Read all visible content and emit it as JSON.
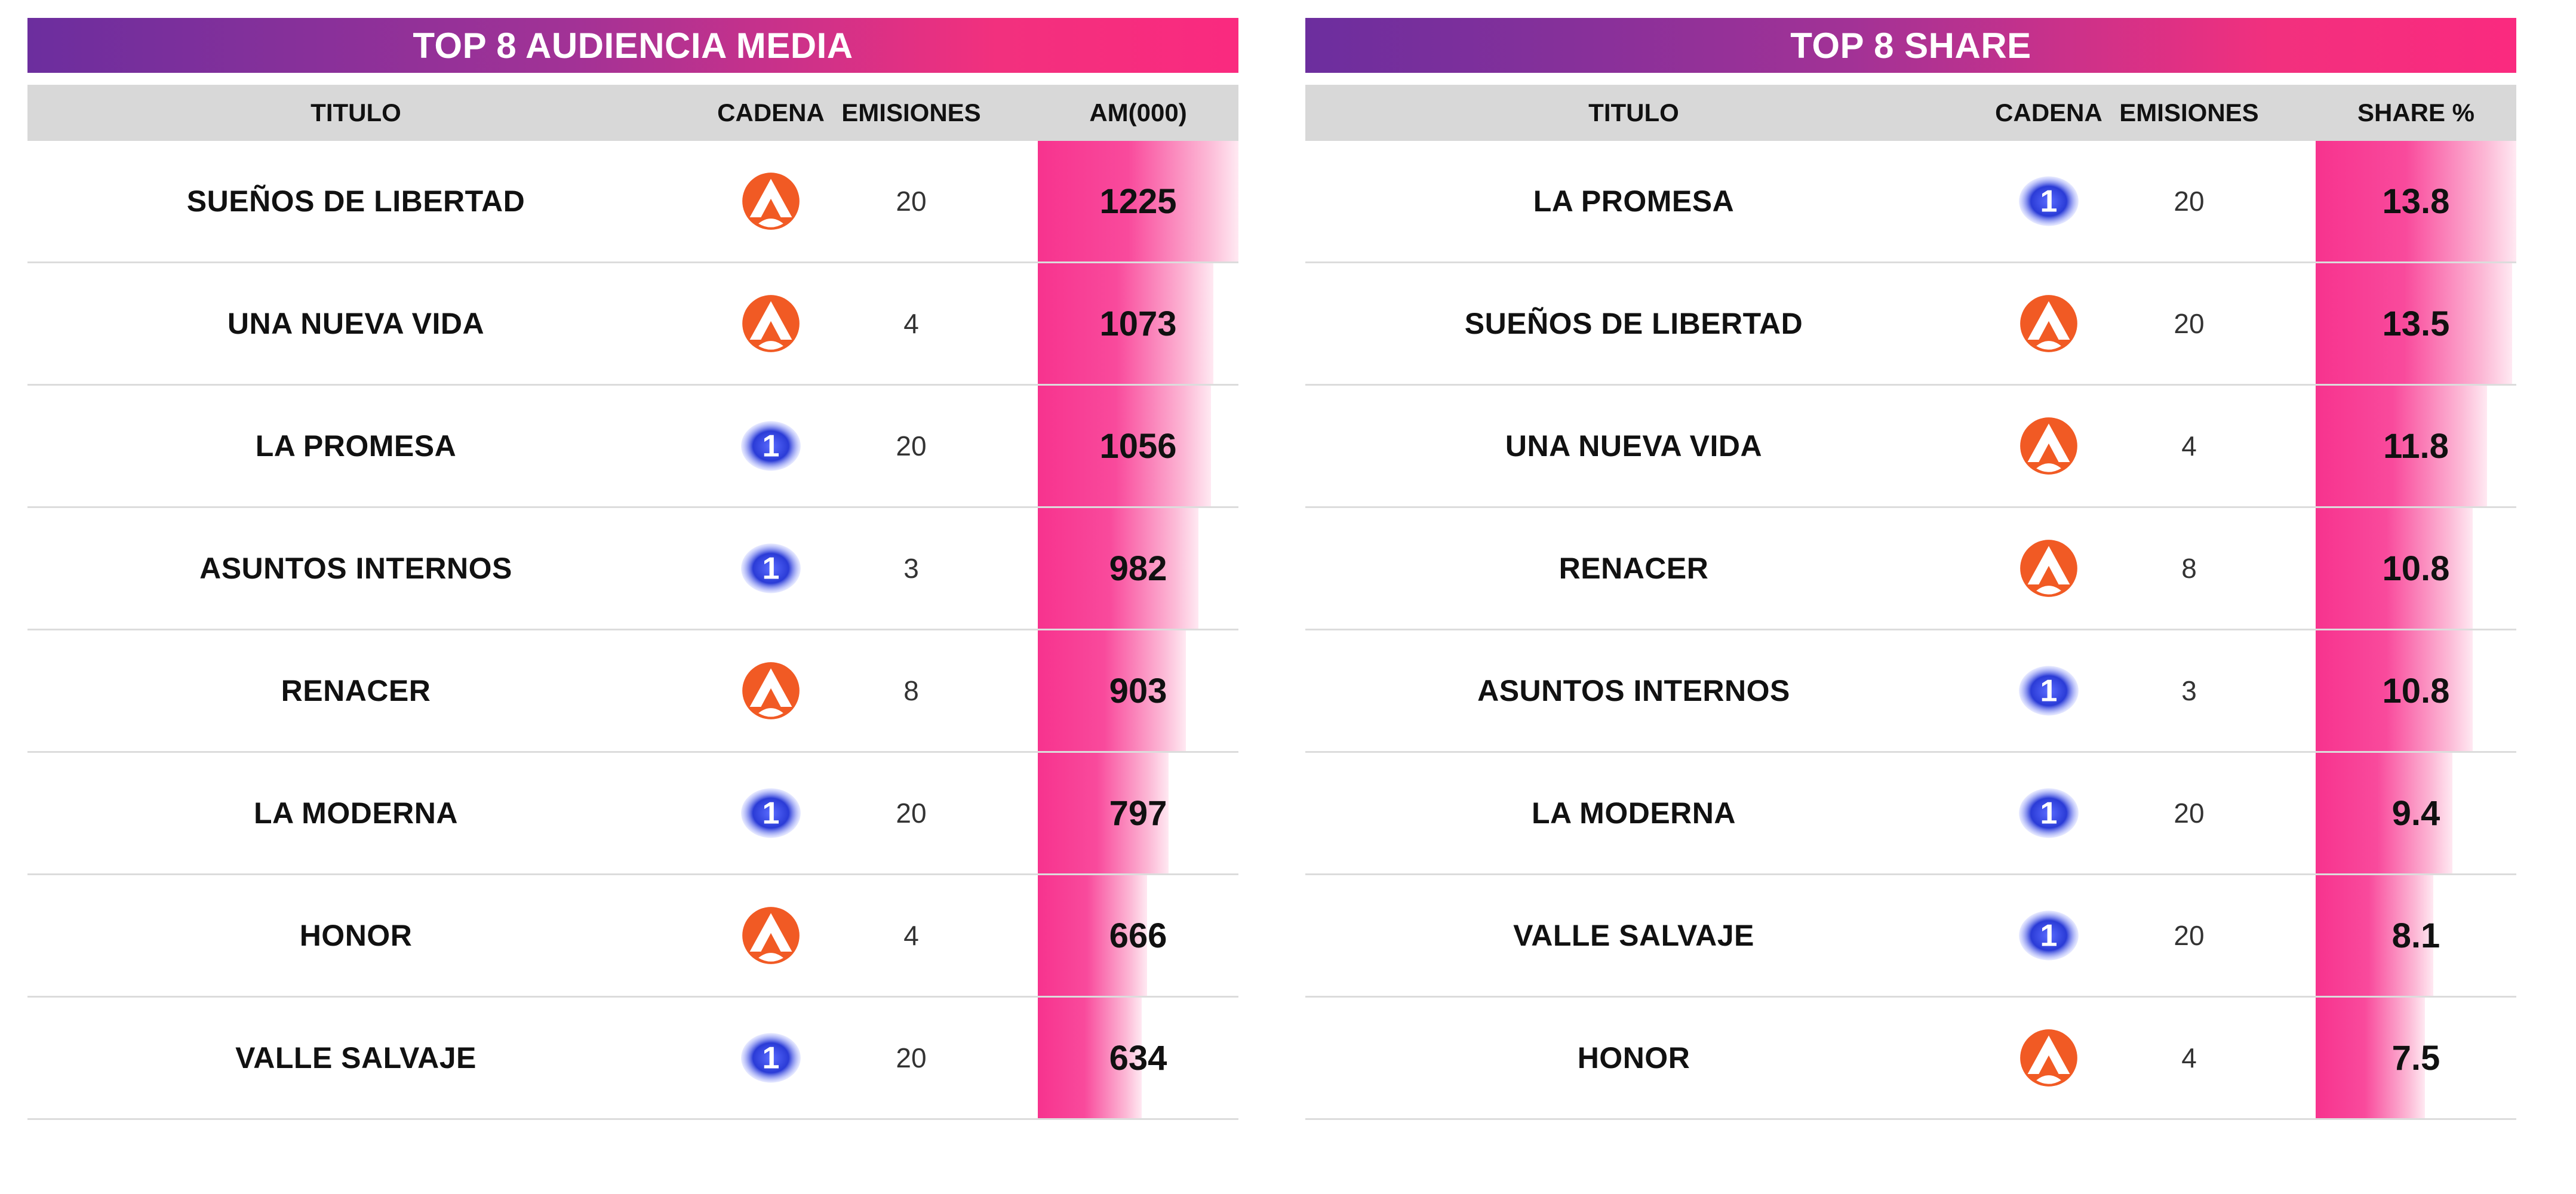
{
  "colors": {
    "banner_start": "#6c2e9e",
    "banner_end": "#fa2a7f",
    "bar": "#f7338e",
    "a3": "#f15a24",
    "tve_blue": "#2a3bd6"
  },
  "icons": {
    "antena3": "antena3-logo-icon",
    "la1": "la1-logo-icon"
  },
  "tables": [
    {
      "title": "TOP 8 AUDIENCIA MEDIA",
      "headers": {
        "titulo": "TITULO",
        "cadena": "CADENA",
        "emisiones": "EMISIONES",
        "value": "AM(000)"
      },
      "max": 1225,
      "rows": [
        {
          "titulo": "SUEÑOS DE LIBERTAD",
          "cadena": "antena3",
          "emisiones": "20",
          "value": "1225",
          "num": 1225
        },
        {
          "titulo": "UNA NUEVA VIDA",
          "cadena": "antena3",
          "emisiones": "4",
          "value": "1073",
          "num": 1073
        },
        {
          "titulo": "LA PROMESA",
          "cadena": "la1",
          "emisiones": "20",
          "value": "1056",
          "num": 1056
        },
        {
          "titulo": "ASUNTOS INTERNOS",
          "cadena": "la1",
          "emisiones": "3",
          "value": "982",
          "num": 982
        },
        {
          "titulo": "RENACER",
          "cadena": "antena3",
          "emisiones": "8",
          "value": "903",
          "num": 903
        },
        {
          "titulo": "LA MODERNA",
          "cadena": "la1",
          "emisiones": "20",
          "value": "797",
          "num": 797
        },
        {
          "titulo": "HONOR",
          "cadena": "antena3",
          "emisiones": "4",
          "value": "666",
          "num": 666
        },
        {
          "titulo": "VALLE SALVAJE",
          "cadena": "la1",
          "emisiones": "20",
          "value": "634",
          "num": 634
        }
      ]
    },
    {
      "title": "TOP 8 SHARE",
      "headers": {
        "titulo": "TITULO",
        "cadena": "CADENA",
        "emisiones": "EMISIONES",
        "value": "SHARE %"
      },
      "max": 13.8,
      "rows": [
        {
          "titulo": "LA PROMESA",
          "cadena": "la1",
          "emisiones": "20",
          "value": "13.8",
          "num": 13.8
        },
        {
          "titulo": "SUEÑOS DE LIBERTAD",
          "cadena": "antena3",
          "emisiones": "20",
          "value": "13.5",
          "num": 13.5
        },
        {
          "titulo": "UNA NUEVA VIDA",
          "cadena": "antena3",
          "emisiones": "4",
          "value": "11.8",
          "num": 11.8
        },
        {
          "titulo": "RENACER",
          "cadena": "antena3",
          "emisiones": "8",
          "value": "10.8",
          "num": 10.8
        },
        {
          "titulo": "ASUNTOS INTERNOS",
          "cadena": "la1",
          "emisiones": "3",
          "value": "10.8",
          "num": 10.8
        },
        {
          "titulo": "LA MODERNA",
          "cadena": "la1",
          "emisiones": "20",
          "value": "9.4",
          "num": 9.4
        },
        {
          "titulo": "VALLE SALVAJE",
          "cadena": "la1",
          "emisiones": "20",
          "value": "8.1",
          "num": 8.1
        },
        {
          "titulo": "HONOR",
          "cadena": "antena3",
          "emisiones": "4",
          "value": "7.5",
          "num": 7.5
        }
      ]
    }
  ]
}
